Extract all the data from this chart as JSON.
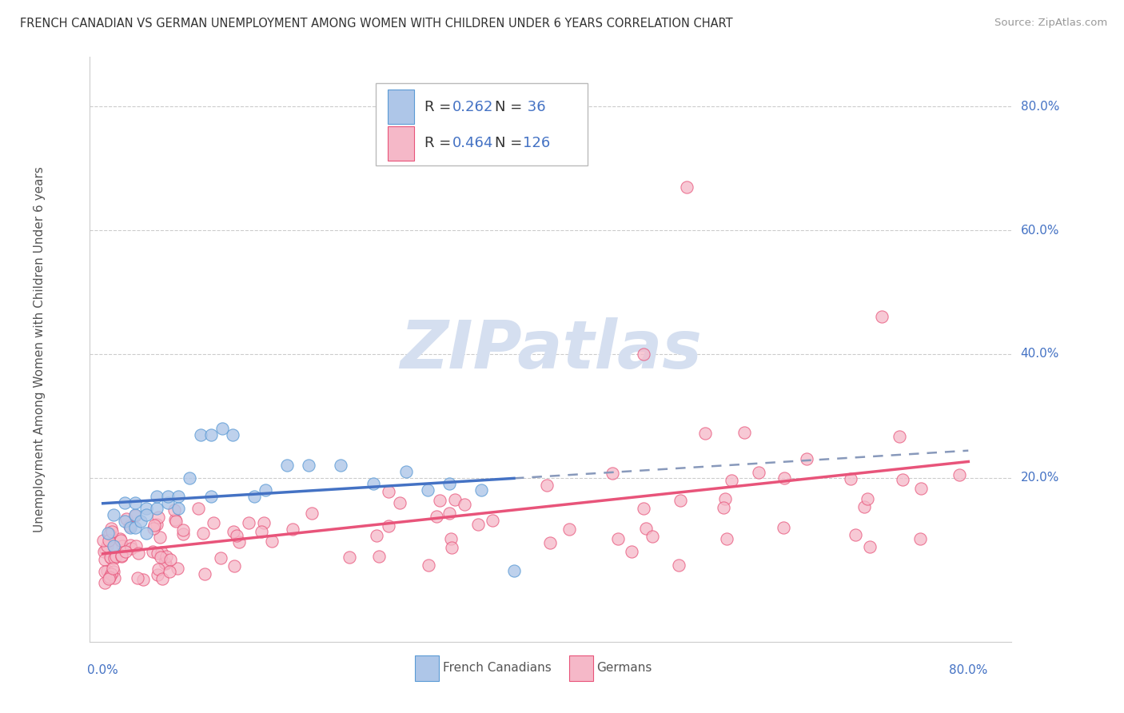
{
  "title": "FRENCH CANADIAN VS GERMAN UNEMPLOYMENT AMONG WOMEN WITH CHILDREN UNDER 6 YEARS CORRELATION CHART",
  "source": "Source: ZipAtlas.com",
  "ylabel": "Unemployment Among Women with Children Under 6 years",
  "title_color": "#333333",
  "source_color": "#999999",
  "blue_scatter_color": "#aec6e8",
  "pink_scatter_color": "#f5b8c8",
  "blue_edge_color": "#5b9bd5",
  "pink_edge_color": "#e8547a",
  "blue_line_color": "#4472c4",
  "pink_line_color": "#e8547a",
  "dashed_line_color": "#8899bb",
  "axis_label_color": "#4472c4",
  "watermark_color": "#d5dff0",
  "grid_color": "#cccccc",
  "legend_r_color": "#333333",
  "legend_n_color": "#4472c4",
  "legend_val_color": "#4472c4",
  "ylabel_color": "#555555",
  "bottom_legend_color": "#555555"
}
